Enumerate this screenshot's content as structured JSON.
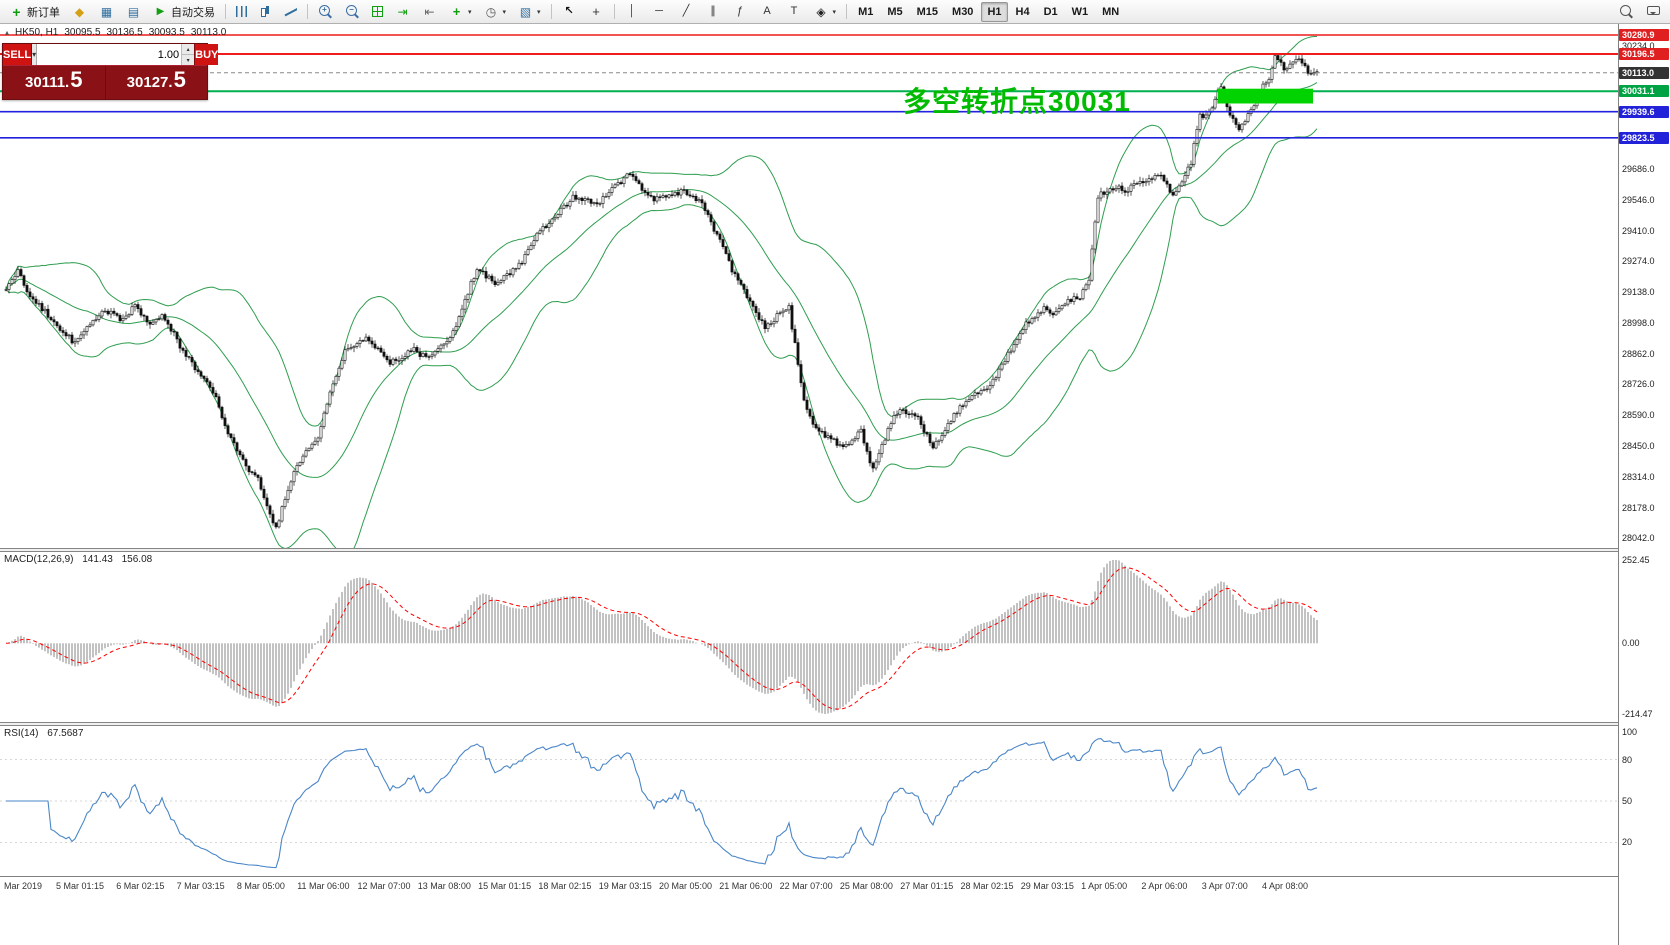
{
  "toolbar": {
    "active_timeframe": "H1",
    "left_items": [
      {
        "t": "btn",
        "name": "new-order-button",
        "icon": "ic-neworder",
        "glyph": "+",
        "label": "新订单"
      },
      {
        "t": "btn",
        "name": "market-watch-button",
        "icon": "ic-quotes",
        "glyph": "◆"
      },
      {
        "t": "btn",
        "name": "profiles-button",
        "icon": "ic-profiles",
        "glyph": "▦"
      },
      {
        "t": "btn",
        "name": "navigator-button",
        "icon": "ic-navigator",
        "glyph": "▤"
      },
      {
        "t": "btn",
        "name": "auto-trading-button",
        "icon": "ic-autotrade",
        "glyph": "▶",
        "label": "自动交易"
      },
      {
        "t": "sep"
      },
      {
        "t": "btn",
        "name": "bar-chart-type-button",
        "icon": "ic-bartype"
      },
      {
        "t": "btn",
        "name": "candlestick-chart-type-button",
        "icon": "ic-candletype"
      },
      {
        "t": "btn",
        "name": "line-chart-type-button",
        "icon": "ic-linetype"
      },
      {
        "t": "sep"
      },
      {
        "t": "btn",
        "name": "zoom-in-button",
        "icon": "ic-zoomin"
      },
      {
        "t": "btn",
        "name": "zoom-out-button",
        "icon": "ic-zoomout"
      },
      {
        "t": "btn",
        "name": "tile-windows-button",
        "icon": "ic-tile"
      },
      {
        "t": "btn",
        "name": "auto-scroll-button",
        "icon": "ic-autoscroll",
        "glyph": "⇥"
      },
      {
        "t": "btn",
        "name": "chart-shift-button",
        "icon": "ic-chartshift",
        "glyph": "⇤"
      },
      {
        "t": "btn",
        "name": "indicators-button",
        "icon": "ic-indicators",
        "glyph": "+",
        "caret": true
      },
      {
        "t": "btn",
        "name": "periods-button",
        "icon": "ic-clock",
        "glyph": "◷",
        "caret": true
      },
      {
        "t": "btn",
        "name": "templates-button",
        "icon": "ic-template",
        "glyph": "▧",
        "caret": true
      },
      {
        "t": "sep"
      },
      {
        "t": "btn",
        "name": "cursor-button",
        "icon": "ic-cursor",
        "glyph": "↖"
      },
      {
        "t": "btn",
        "name": "crosshair-button",
        "icon": "ic-crosshair",
        "glyph": "+"
      },
      {
        "t": "sep"
      },
      {
        "t": "btn",
        "name": "vertical-line-button",
        "icon": "ic-vline",
        "glyph": "│"
      },
      {
        "t": "btn",
        "name": "horizontal-line-button",
        "icon": "ic-hline",
        "glyph": "─"
      },
      {
        "t": "btn",
        "name": "trendline-button",
        "icon": "ic-trendline",
        "glyph": "╱"
      },
      {
        "t": "btn",
        "name": "channel-button",
        "icon": "ic-channel",
        "glyph": "∥"
      },
      {
        "t": "btn",
        "name": "fibonacci-button",
        "icon": "ic-fibo",
        "glyph": "ƒ"
      },
      {
        "t": "btn",
        "name": "text-button",
        "icon": "ic-text",
        "glyph": "A"
      },
      {
        "t": "btn",
        "name": "label-button",
        "icon": "ic-label",
        "glyph": "T"
      },
      {
        "t": "btn",
        "name": "shapes-button",
        "icon": "ic-shapes",
        "glyph": "◈",
        "caret": true
      },
      {
        "t": "sep"
      },
      {
        "t": "tf",
        "name": "timeframe-m1-button",
        "label": "M1"
      },
      {
        "t": "tf",
        "name": "timeframe-m5-button",
        "label": "M5"
      },
      {
        "t": "tf",
        "name": "timeframe-m15-button",
        "label": "M15"
      },
      {
        "t": "tf",
        "name": "timeframe-m30-button",
        "label": "M30"
      },
      {
        "t": "tf",
        "name": "timeframe-h1-button",
        "label": "H1"
      },
      {
        "t": "tf",
        "name": "timeframe-h4-button",
        "label": "H4"
      },
      {
        "t": "tf",
        "name": "timeframe-d1-button",
        "label": "D1"
      },
      {
        "t": "tf",
        "name": "timeframe-w1-button",
        "label": "W1"
      },
      {
        "t": "tf",
        "name": "timeframe-mn-button",
        "label": "MN"
      }
    ],
    "right_items": [
      {
        "t": "btn",
        "name": "search-button",
        "icon": "ic-search"
      },
      {
        "t": "btn",
        "name": "chat-button",
        "icon": "ic-chat"
      }
    ]
  },
  "chart": {
    "title_symbol": "HK50, H1",
    "ohlc": {
      "open": "30095.5",
      "high": "30136.5",
      "low": "30093.5",
      "close": "30113.0"
    },
    "annotation": "多空转折点30031"
  },
  "trade_panel": {
    "sell_label": "SELL",
    "buy_label": "BUY",
    "volume": "1.00",
    "sell_price_main": "30111.",
    "sell_price_pips": "5",
    "buy_price_main": "30127.",
    "buy_price_pips": "5"
  },
  "macd": {
    "label": "MACD(12,26,9)",
    "value_main": "141.43",
    "value_signal": "156.08",
    "ticks": [
      "252.45",
      "0.00",
      "-214.47"
    ]
  },
  "rsi": {
    "label": "RSI(14)",
    "value": "67.5687",
    "ticks": [
      "100",
      "80",
      "50",
      "20"
    ],
    "levels": [
      80,
      50,
      20
    ]
  },
  "time_axis": [
    "Mar 2019",
    "5 Mar 01:15",
    "6 Mar 02:15",
    "7 Mar 03:15",
    "8 Mar 05:00",
    "11 Mar 06:00",
    "12 Mar 07:00",
    "13 Mar 08:00",
    "15 Mar 01:15",
    "18 Mar 02:15",
    "19 Mar 03:15",
    "20 Mar 05:00",
    "21 Mar 06:00",
    "22 Mar 07:00",
    "25 Mar 08:00",
    "27 Mar 01:15",
    "28 Mar 02:15",
    "29 Mar 03:15",
    "1 Apr 05:00",
    "2 Apr 06:00",
    "3 Apr 07:00",
    "4 Apr 08:00"
  ],
  "chart_data": {
    "type": "candlestick",
    "symbol": "HK50",
    "timeframe": "H1",
    "ohlc_current": {
      "open": 30095.5,
      "high": 30136.5,
      "low": 30093.5,
      "close": 30113.0
    },
    "bars": 438,
    "price_range": [
      27998,
      30330
    ],
    "close_anchors": [
      [
        0,
        29150
      ],
      [
        4,
        29230
      ],
      [
        8,
        29120
      ],
      [
        13,
        29050
      ],
      [
        18,
        28975
      ],
      [
        23,
        28910
      ],
      [
        28,
        28990
      ],
      [
        33,
        29060
      ],
      [
        38,
        29020
      ],
      [
        43,
        29070
      ],
      [
        48,
        28990
      ],
      [
        52,
        29040
      ],
      [
        56,
        28950
      ],
      [
        60,
        28850
      ],
      [
        65,
        28770
      ],
      [
        70,
        28660
      ],
      [
        75,
        28480
      ],
      [
        80,
        28360
      ],
      [
        84,
        28300
      ],
      [
        88,
        28140
      ],
      [
        90,
        28090
      ],
      [
        93,
        28210
      ],
      [
        96,
        28330
      ],
      [
        100,
        28420
      ],
      [
        104,
        28480
      ],
      [
        107,
        28650
      ],
      [
        110,
        28760
      ],
      [
        113,
        28870
      ],
      [
        117,
        28900
      ],
      [
        120,
        28935
      ],
      [
        124,
        28880
      ],
      [
        128,
        28820
      ],
      [
        132,
        28850
      ],
      [
        136,
        28880
      ],
      [
        140,
        28845
      ],
      [
        144,
        28890
      ],
      [
        148,
        28930
      ],
      [
        151,
        29020
      ],
      [
        154,
        29140
      ],
      [
        157,
        29245
      ],
      [
        160,
        29210
      ],
      [
        163,
        29180
      ],
      [
        166,
        29210
      ],
      [
        170,
        29235
      ],
      [
        174,
        29320
      ],
      [
        177,
        29395
      ],
      [
        181,
        29450
      ],
      [
        185,
        29510
      ],
      [
        189,
        29555
      ],
      [
        193,
        29545
      ],
      [
        197,
        29520
      ],
      [
        201,
        29585
      ],
      [
        205,
        29630
      ],
      [
        208,
        29665
      ],
      [
        211,
        29610
      ],
      [
        214,
        29555
      ],
      [
        218,
        29550
      ],
      [
        222,
        29565
      ],
      [
        226,
        29585
      ],
      [
        230,
        29555
      ],
      [
        233,
        29510
      ],
      [
        236,
        29420
      ],
      [
        239,
        29340
      ],
      [
        242,
        29230
      ],
      [
        245,
        29170
      ],
      [
        248,
        29100
      ],
      [
        251,
        29020
      ],
      [
        253,
        28985
      ],
      [
        256,
        29015
      ],
      [
        259,
        29055
      ],
      [
        261,
        29065
      ],
      [
        263,
        28900
      ],
      [
        266,
        28650
      ],
      [
        269,
        28540
      ],
      [
        272,
        28505
      ],
      [
        276,
        28475
      ],
      [
        279,
        28440
      ],
      [
        282,
        28470
      ],
      [
        285,
        28520
      ],
      [
        287,
        28420
      ],
      [
        289,
        28355
      ],
      [
        292,
        28450
      ],
      [
        295,
        28560
      ],
      [
        298,
        28620
      ],
      [
        301,
        28600
      ],
      [
        304,
        28570
      ],
      [
        307,
        28500
      ],
      [
        309,
        28455
      ],
      [
        312,
        28500
      ],
      [
        315,
        28570
      ],
      [
        318,
        28620
      ],
      [
        321,
        28660
      ],
      [
        325,
        28695
      ],
      [
        328,
        28725
      ],
      [
        331,
        28790
      ],
      [
        334,
        28860
      ],
      [
        337,
        28930
      ],
      [
        340,
        29000
      ],
      [
        343,
        29035
      ],
      [
        346,
        29065
      ],
      [
        349,
        29030
      ],
      [
        352,
        29075
      ],
      [
        355,
        29105
      ],
      [
        358,
        29120
      ],
      [
        361,
        29200
      ],
      [
        364,
        29560
      ],
      [
        367,
        29590
      ],
      [
        370,
        29605
      ],
      [
        373,
        29580
      ],
      [
        376,
        29620
      ],
      [
        379,
        29635
      ],
      [
        382,
        29648
      ],
      [
        385,
        29660
      ],
      [
        387,
        29610
      ],
      [
        389,
        29560
      ],
      [
        391,
        29615
      ],
      [
        393,
        29660
      ],
      [
        395,
        29705
      ],
      [
        396,
        29800
      ],
      [
        398,
        29920
      ],
      [
        400,
        29915
      ],
      [
        402,
        29945
      ],
      [
        404,
        30030
      ],
      [
        405,
        30045
      ],
      [
        407,
        29965
      ],
      [
        409,
        29900
      ],
      [
        411,
        29855
      ],
      [
        413,
        29900
      ],
      [
        415,
        29940
      ],
      [
        417,
        30000
      ],
      [
        419,
        30055
      ],
      [
        421,
        30095
      ],
      [
        423,
        30190
      ],
      [
        425,
        30150
      ],
      [
        427,
        30125
      ],
      [
        429,
        30165
      ],
      [
        431,
        30180
      ],
      [
        433,
        30150
      ],
      [
        435,
        30095
      ],
      [
        437,
        30113
      ]
    ],
    "bollinger": {
      "period": 28,
      "deviation": 2,
      "color": "#2f9e4f"
    },
    "hlines": [
      {
        "price": 30280.9,
        "label": "30280.9",
        "color": "#ee1c1c",
        "width": 1.4,
        "label_bg": "#e02020"
      },
      {
        "price": 30196.5,
        "label": "30196.5",
        "color": "#ee1c1c",
        "width": 2,
        "label_bg": "#e02020"
      },
      {
        "price": 30113.0,
        "label": "30113.0",
        "color": "#888888",
        "width": 1,
        "dash": "4 3",
        "label_bg": "#333333"
      },
      {
        "price": 30031.1,
        "label": "30031.1",
        "color": "#00b050",
        "width": 2,
        "label_bg": "#00a344"
      },
      {
        "price": 29939.6,
        "label": "29939.6",
        "color": "#2222dd",
        "width": 1.6,
        "label_bg": "#2222d8"
      },
      {
        "price": 29823.5,
        "label": "29823.5",
        "color": "#2222dd",
        "width": 1.6,
        "label_bg": "#2222d8"
      }
    ],
    "axis_ticks": [
      30234.0,
      29686.0,
      29546.0,
      29410.0,
      29274.0,
      29138.0,
      28998.0,
      28862.0,
      28726.0,
      28590.0,
      28450.0,
      28314.0,
      28178.0,
      28042.0
    ],
    "highlight_box": {
      "from_bar": 404,
      "to_bar": 435,
      "price_top": 30042,
      "price_bottom": 29976,
      "color": "#00d300"
    },
    "macd": {
      "params": [
        12,
        26,
        9
      ],
      "scale_max": 252.45,
      "scale_min": -214.47,
      "bar_color": "#b3b3b3",
      "signal_color": "#ff0000"
    },
    "rsi": {
      "period": 14,
      "color": "#4a86c8"
    }
  }
}
